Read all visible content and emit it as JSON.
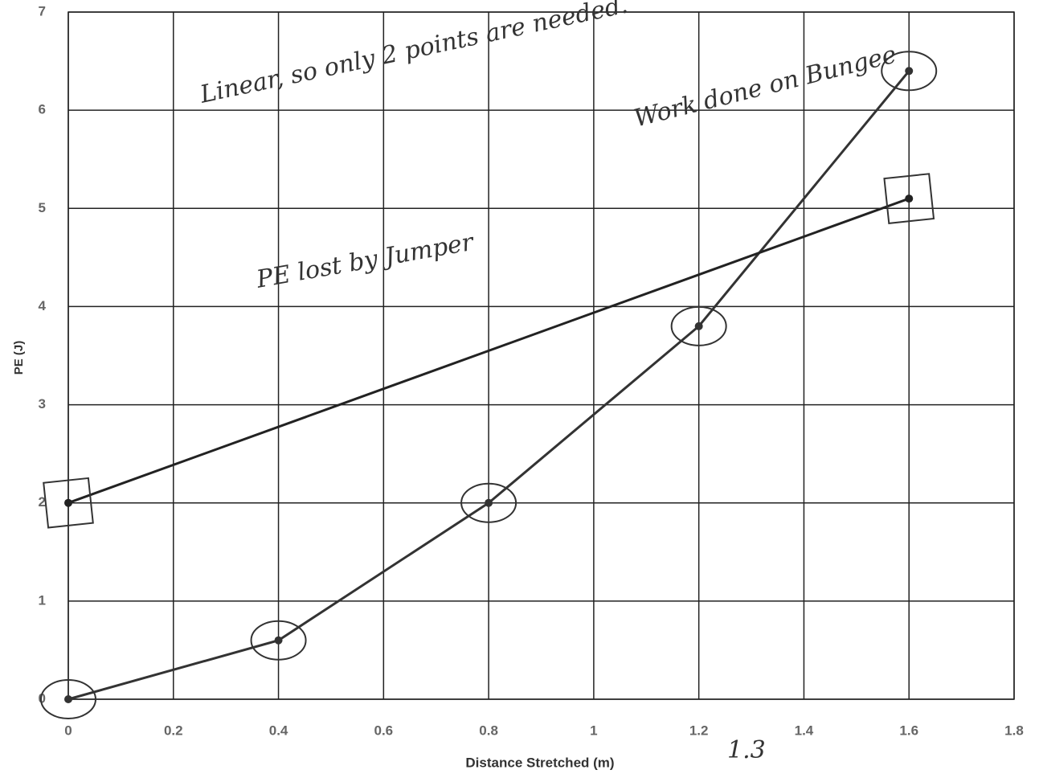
{
  "chart_data": {
    "type": "scatter",
    "x_label": "Distance Stretched (m)",
    "y_label": "PE (J)",
    "xlim": [
      0,
      1.8
    ],
    "xticks": [
      0,
      0.2,
      0.4,
      0.6,
      0.8,
      1,
      1.2,
      1.4,
      1.6,
      1.8
    ],
    "ylim": [
      0,
      7
    ],
    "yticks": [
      0,
      1,
      2,
      3,
      4,
      5,
      6,
      7
    ],
    "grid": true,
    "series": [
      {
        "name": "Work done on Bungee",
        "color": "#333333",
        "marker": "circle",
        "x": [
          0,
          0.4,
          0.8,
          1.2,
          1.6
        ],
        "values": [
          0,
          0.6,
          2.0,
          3.8,
          6.4
        ]
      },
      {
        "name": "PE lost by Jumper",
        "color": "#222222",
        "marker": "square",
        "x": [
          0,
          1.6
        ],
        "values": [
          2,
          5.1
        ]
      }
    ],
    "annotations": [
      "Linear, so only 2 points are needed.",
      "PE lost by Jumper",
      "Work done on Bungee",
      "1.3"
    ]
  }
}
